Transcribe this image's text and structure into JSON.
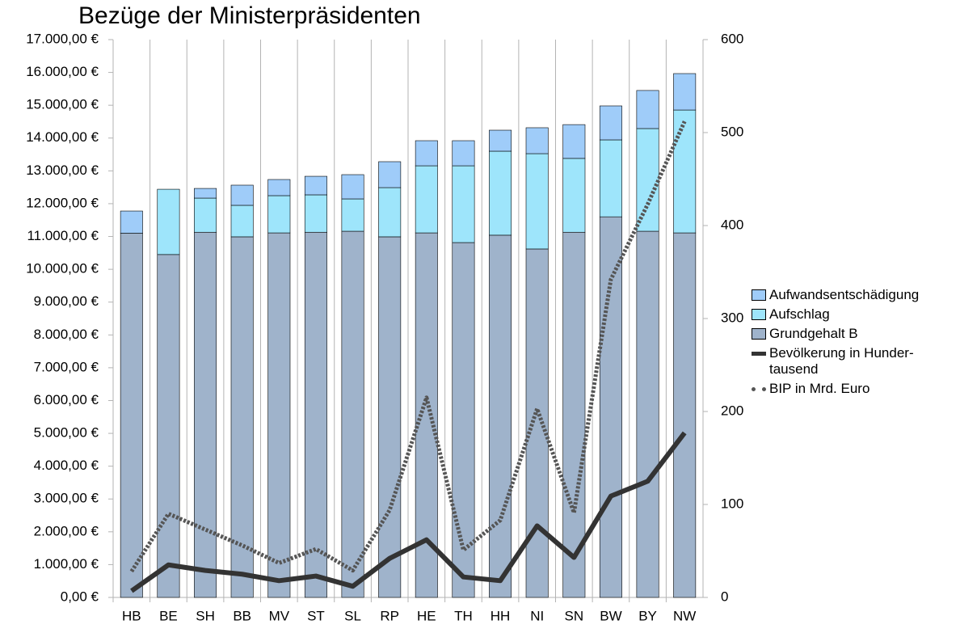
{
  "chart_data": {
    "type": "bar",
    "stacked": true,
    "title": "Bezüge der Ministerpräsidenten",
    "categories": [
      "HB",
      "BE",
      "SH",
      "BB",
      "MV",
      "ST",
      "SL",
      "RP",
      "HE",
      "TH",
      "HH",
      "NI",
      "SN",
      "BW",
      "BY",
      "NW"
    ],
    "series": [
      {
        "name": "Grundgehalt B",
        "type": "bar",
        "color": "#9fb3cb",
        "values": [
          11100,
          10450,
          11130,
          10990,
          11110,
          11130,
          11160,
          10990,
          11110,
          10815,
          11040,
          10620,
          11130,
          11600,
          11160,
          11110
        ]
      },
      {
        "name": "Aufschlag",
        "type": "bar",
        "color": "#9ee5fb",
        "values": [
          0,
          1990,
          1040,
          960,
          1135,
          1140,
          986,
          1500,
          2045,
          2340,
          2560,
          2905,
          2250,
          2345,
          3130,
          3745
        ]
      },
      {
        "name": "Aufwandsentschädigung",
        "type": "bar",
        "color": "#9fccf9",
        "values": [
          676,
          0,
          295,
          615,
          492,
          565,
          739,
          790,
          765,
          765,
          640,
          790,
          1030,
          1035,
          1160,
          1110
        ]
      },
      {
        "name": "Bevölkerung in Hunder-tausend",
        "type": "line",
        "axis": "y2",
        "color": "#333333",
        "values": [
          7,
          35,
          29,
          25,
          18,
          23,
          12,
          42,
          62,
          22,
          18,
          77,
          43,
          109,
          125,
          177
        ]
      },
      {
        "name": "BIP in Mrd. Euro",
        "type": "line",
        "axis": "y2",
        "dashed": true,
        "color": "#555555",
        "values": [
          28,
          90,
          73,
          56,
          37,
          52,
          29,
          94,
          215,
          51,
          83,
          203,
          91,
          342,
          423,
          512
        ]
      }
    ],
    "ylim": [
      0,
      17000
    ],
    "yticks": [
      {
        "value": 0,
        "label": "0,00 €"
      },
      {
        "value": 1000,
        "label": "1.000,00 €"
      },
      {
        "value": 2000,
        "label": "2.000,00 €"
      },
      {
        "value": 3000,
        "label": "3.000,00 €"
      },
      {
        "value": 4000,
        "label": "4.000,00 €"
      },
      {
        "value": 5000,
        "label": "5.000,00 €"
      },
      {
        "value": 6000,
        "label": "6.000,00 €"
      },
      {
        "value": 7000,
        "label": "7.000,00 €"
      },
      {
        "value": 8000,
        "label": "8.000,00 €"
      },
      {
        "value": 9000,
        "label": "9.000,00 €"
      },
      {
        "value": 10000,
        "label": "10.000,00 €"
      },
      {
        "value": 11000,
        "label": "11.000,00 €"
      },
      {
        "value": 12000,
        "label": "12.000,00 €"
      },
      {
        "value": 13000,
        "label": "13.000,00 €"
      },
      {
        "value": 14000,
        "label": "14.000,00 €"
      },
      {
        "value": 15000,
        "label": "15.000,00 €"
      },
      {
        "value": 16000,
        "label": "16.000,00 €"
      },
      {
        "value": 17000,
        "label": "17.000,00 €"
      }
    ],
    "y2lim": [
      0,
      600
    ],
    "y2ticks": [
      0,
      100,
      200,
      300,
      400,
      500,
      600
    ],
    "legend": "right"
  }
}
